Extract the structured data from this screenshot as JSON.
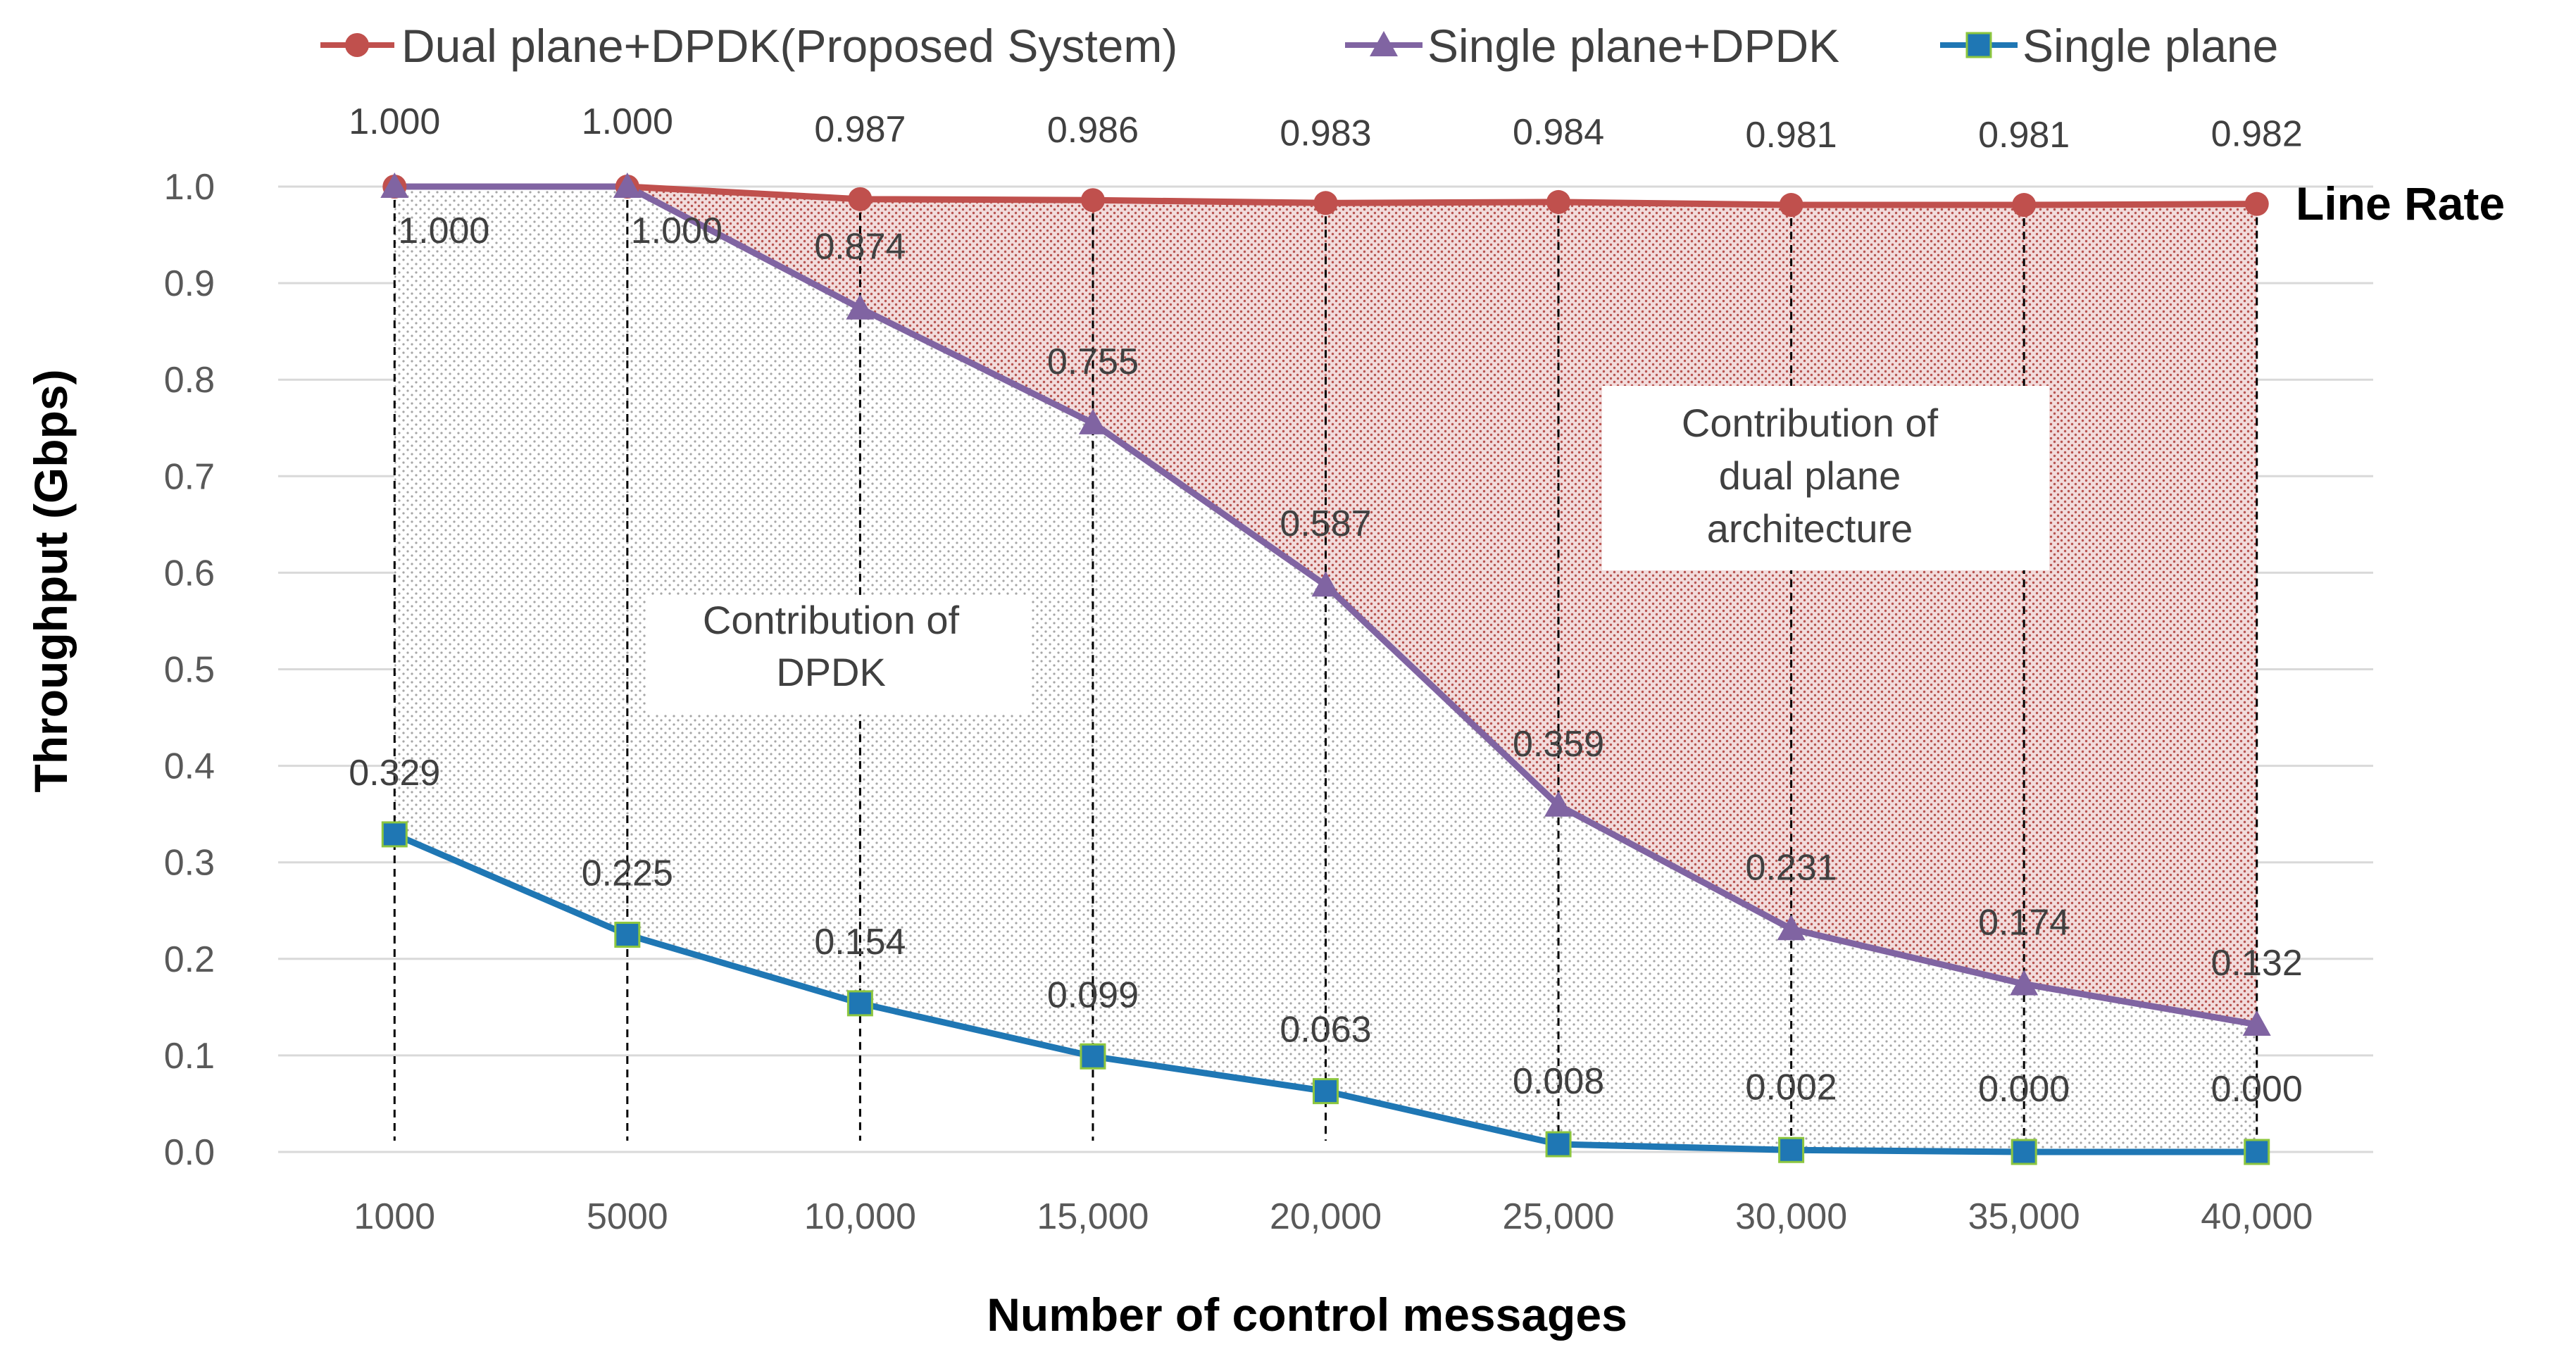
{
  "chart_data": {
    "type": "line",
    "xlabel": "Number of control messages",
    "ylabel": "Throughput (Gbps)",
    "ylim": [
      0,
      1.0
    ],
    "yticks": [
      "0.0",
      "0.1",
      "0.2",
      "0.3",
      "0.4",
      "0.5",
      "0.6",
      "0.7",
      "0.8",
      "0.9",
      "1.0"
    ],
    "categories": [
      "1000",
      "5000",
      "10,000",
      "15,000",
      "20,000",
      "25,000",
      "30,000",
      "35,000",
      "40,000"
    ],
    "legend_position": "top",
    "grid": true,
    "series": [
      {
        "name": "Dual plane+DPDK(Proposed System)",
        "color": "#c0504d",
        "marker": "circle",
        "values": [
          1.0,
          1.0,
          0.987,
          0.986,
          0.983,
          0.984,
          0.981,
          0.981,
          0.982
        ],
        "labels": [
          "1.000",
          "1.000",
          "0.987",
          "0.986",
          "0.983",
          "0.984",
          "0.981",
          "0.981",
          "0.982"
        ]
      },
      {
        "name": "Single plane+DPDK",
        "color": "#8064a2",
        "marker": "triangle",
        "values": [
          1.0,
          1.0,
          0.874,
          0.755,
          0.587,
          0.359,
          0.231,
          0.174,
          0.132
        ],
        "labels": [
          "1.000",
          "1.000",
          "0.874",
          "0.755",
          "0.587",
          "0.359",
          "0.231",
          "0.174",
          "0.132"
        ]
      },
      {
        "name": "Single plane",
        "color": "#1f77b4",
        "marker": "square",
        "values": [
          0.329,
          0.225,
          0.154,
          0.099,
          0.063,
          0.008,
          0.002,
          0.0,
          0.0
        ],
        "labels": [
          "0.329",
          "0.225",
          "0.154",
          "0.099",
          "0.063",
          "0.008",
          "0.002",
          "0.000",
          "0.000"
        ]
      }
    ],
    "annotations": {
      "line_rate": "Line Rate",
      "dpdk_line1": "Contribution of",
      "dpdk_line2": "DPDK",
      "dual_line1": "Contribution of",
      "dual_line2": "dual plane",
      "dual_line3": "architecture"
    }
  }
}
